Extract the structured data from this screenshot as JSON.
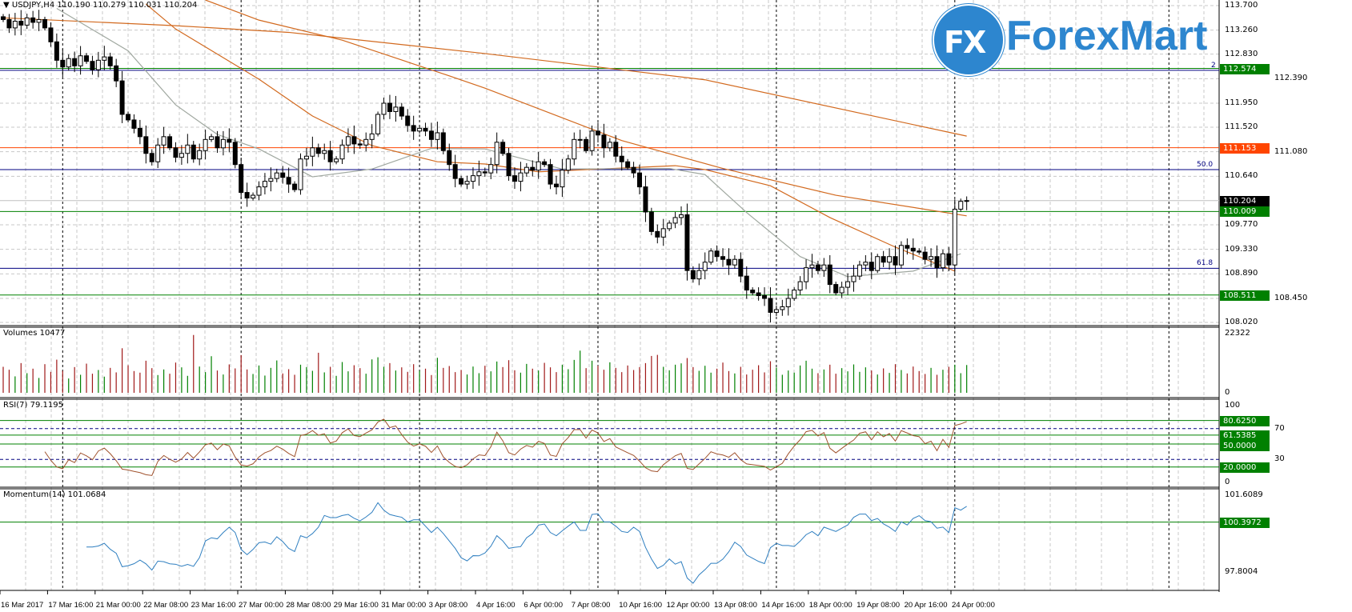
{
  "header": {
    "symbol": "USDJPY,H4",
    "open": "110.190",
    "high": "110.279",
    "low": "110.031",
    "close": "110.204"
  },
  "logo": {
    "text": "ForexMart",
    "badge": "FX"
  },
  "panes": {
    "volumes_label": "Volumes 10477",
    "rsi_label": "RSI(7) 79.1195",
    "momentum_label": "Momentum(14) 101.0684"
  },
  "colors": {
    "up_volume": "#008000",
    "down_volume": "#a01818",
    "ma": "#d2691e",
    "ma_fast": "#a0a8a0",
    "rsi": "#a0522d",
    "momentum": "#2f7fc0",
    "level_green": "#008000",
    "level_orange": "#ff4500",
    "fib": "#000080",
    "brand": "#2d86cf"
  },
  "chart_data": {
    "type": "candlestick",
    "title": "USDJPY,H4",
    "price_axis": {
      "min": 108.02,
      "max": 113.7,
      "ticks": [
        "113.700",
        "113.260",
        "112.830",
        "112.390",
        "111.950",
        "111.520",
        "111.080",
        "110.640",
        "109.770",
        "109.330",
        "108.890",
        "108.450",
        "108.020"
      ]
    },
    "time_labels": [
      "16 Mar 2017",
      "17 Mar 16:00",
      "21 Mar 00:00",
      "22 Mar 08:00",
      "23 Mar 16:00",
      "27 Mar 00:00",
      "28 Mar 08:00",
      "29 Mar 16:00",
      "31 Mar 00:00",
      "3 Apr 08:00",
      "4 Apr 16:00",
      "6 Apr 00:00",
      "7 Apr 08:00",
      "10 Apr 16:00",
      "12 Apr 00:00",
      "13 Apr 08:00",
      "14 Apr 16:00",
      "18 Apr 00:00",
      "19 Apr 08:00",
      "20 Apr 16:00",
      "24 Apr 00:00"
    ],
    "bars_per_label": 8,
    "week_separator_bars": [
      10,
      40,
      70,
      100,
      130,
      160,
      196
    ],
    "closes": [
      113.45,
      113.3,
      113.42,
      113.35,
      113.48,
      113.4,
      113.45,
      113.3,
      113.05,
      112.72,
      112.6,
      112.75,
      112.62,
      112.8,
      112.7,
      112.55,
      112.72,
      112.78,
      112.62,
      112.35,
      111.75,
      111.65,
      111.5,
      111.35,
      111.05,
      110.9,
      111.2,
      111.35,
      111.15,
      110.98,
      111.05,
      111.2,
      110.95,
      111.1,
      111.3,
      111.35,
      111.15,
      111.3,
      111.25,
      110.85,
      110.35,
      110.25,
      110.3,
      110.45,
      110.55,
      110.6,
      110.7,
      110.62,
      110.5,
      110.4,
      110.95,
      111.0,
      111.15,
      111.05,
      111.1,
      110.9,
      110.95,
      111.2,
      111.35,
      111.22,
      111.2,
      111.3,
      111.4,
      111.75,
      111.95,
      111.8,
      111.88,
      111.72,
      111.55,
      111.45,
      111.5,
      111.45,
      111.3,
      111.42,
      111.1,
      110.85,
      110.6,
      110.5,
      110.55,
      110.65,
      110.72,
      110.7,
      110.85,
      111.25,
      111.05,
      110.65,
      110.55,
      110.7,
      110.8,
      110.75,
      110.9,
      110.85,
      110.5,
      110.45,
      110.75,
      110.95,
      111.3,
      111.3,
      111.1,
      111.45,
      111.38,
      111.15,
      111.25,
      111.0,
      110.9,
      110.8,
      110.7,
      110.45,
      110.0,
      109.65,
      109.55,
      109.7,
      109.8,
      109.9,
      109.95,
      108.95,
      108.8,
      108.95,
      109.1,
      109.3,
      109.2,
      109.15,
      109.05,
      109.15,
      108.85,
      108.6,
      108.55,
      108.5,
      108.45,
      108.2,
      108.25,
      108.3,
      108.45,
      108.6,
      108.75,
      109.0,
      109.05,
      108.95,
      109.05,
      108.7,
      108.55,
      108.65,
      108.75,
      108.85,
      109.05,
      109.1,
      108.95,
      109.2,
      109.1,
      109.2,
      109.05,
      109.4,
      109.35,
      109.3,
      109.28,
      109.15,
      109.2,
      109.0,
      109.25,
      109.05,
      110.05,
      110.19,
      110.204
    ],
    "last_bar": {
      "open": 110.19,
      "high": 110.279,
      "low": 110.031,
      "close": 110.204
    },
    "moving_averages": [
      {
        "name": "ma-slow",
        "color": "#d2691e",
        "points": [
          [
            0,
            113.48
          ],
          [
            29,
            113.34
          ],
          [
            48,
            113.22
          ],
          [
            81,
            112.84
          ],
          [
            118,
            112.37
          ],
          [
            162,
            111.36
          ]
        ]
      },
      {
        "name": "ma-mid",
        "color": "#d2691e",
        "points": [
          [
            34,
            113.8
          ],
          [
            43,
            113.44
          ],
          [
            57,
            113.08
          ],
          [
            75,
            112.44
          ],
          [
            81,
            112.22
          ],
          [
            104,
            111.28
          ],
          [
            121,
            110.78
          ],
          [
            140,
            110.3
          ],
          [
            162,
            109.93
          ]
        ]
      },
      {
        "name": "ma-fast-orange",
        "color": "#d2691e",
        "points": [
          [
            24,
            113.73
          ],
          [
            29,
            113.28
          ],
          [
            43,
            112.38
          ],
          [
            52,
            111.72
          ],
          [
            62,
            111.19
          ],
          [
            73,
            110.9
          ],
          [
            81,
            110.86
          ],
          [
            90,
            110.72
          ],
          [
            113,
            110.83
          ],
          [
            118,
            110.76
          ],
          [
            129,
            110.47
          ],
          [
            139,
            109.9
          ],
          [
            150,
            109.37
          ],
          [
            160,
            108.94
          ]
        ]
      },
      {
        "name": "ma-gray",
        "color": "#a0a8a0",
        "points": [
          [
            9,
            113.65
          ],
          [
            21,
            112.89
          ],
          [
            29,
            111.92
          ],
          [
            36,
            111.39
          ],
          [
            43,
            111.13
          ],
          [
            52,
            110.63
          ],
          [
            62,
            110.77
          ],
          [
            72,
            111.14
          ],
          [
            81,
            111.13
          ],
          [
            94,
            110.77
          ],
          [
            112,
            110.78
          ],
          [
            118,
            110.67
          ],
          [
            125,
            109.99
          ],
          [
            134,
            109.2
          ],
          [
            142,
            108.84
          ],
          [
            153,
            108.94
          ],
          [
            161,
            109.25
          ]
        ]
      }
    ],
    "levels": [
      {
        "value": 112.574,
        "label": "112.574",
        "color": "#008000",
        "kind": "box"
      },
      {
        "value": 111.153,
        "label": "111.153",
        "color": "#ff4500",
        "kind": "box"
      },
      {
        "value": 110.204,
        "label": "110.204",
        "color": "#000000",
        "kind": "current"
      },
      {
        "value": 110.009,
        "label": "110.009",
        "color": "#008000",
        "kind": "box"
      },
      {
        "value": 108.511,
        "label": "108.511",
        "color": "#008000",
        "kind": "box"
      }
    ],
    "fib_levels": [
      {
        "value": 112.54,
        "label": "2"
      },
      {
        "value": 110.76,
        "label": "50.0"
      },
      {
        "value": 108.99,
        "label": "61.8"
      }
    ],
    "volume": {
      "min": 0,
      "max": 22322,
      "max_label": "22322",
      "min_label": "0",
      "current": 10477,
      "values": [
        9800,
        8700,
        6200,
        11200,
        7400,
        9100,
        5600,
        10800,
        7900,
        12500,
        8300,
        5400,
        9700,
        6800,
        11000,
        7200,
        8600,
        6100,
        9400,
        7700,
        16800,
        10400,
        8200,
        7600,
        12100,
        9300,
        6700,
        8800,
        7200,
        11400,
        9600,
        6400,
        21800,
        9900,
        7800,
        13800,
        8400,
        6900,
        10700,
        9200,
        14200,
        8800,
        7100,
        10300,
        6500,
        9400,
        12200,
        7300,
        8900,
        6800,
        10600,
        9700,
        8300,
        15100,
        7700,
        9800,
        6400,
        11600,
        8100,
        10400,
        9300,
        7200,
        12600,
        13400,
        9800,
        11200,
        8400,
        9600,
        7900,
        10800,
        8300,
        9100,
        6700,
        13200,
        9400,
        10100,
        7800,
        8600,
        6900,
        9900,
        7400,
        10200,
        8100,
        11800,
        9700,
        12300,
        8500,
        7600,
        10900,
        9100,
        8400,
        11300,
        9600,
        7800,
        10600,
        8900,
        12400,
        15900,
        9300,
        12100,
        10200,
        8700,
        11500,
        9400,
        7800,
        10300,
        8600,
        9700,
        11200,
        13900,
        14300,
        9800,
        8500,
        10600,
        11100,
        13100,
        9700,
        8300,
        10200,
        7600,
        9100,
        11400,
        8200,
        7300,
        9800,
        6900,
        8700,
        10400,
        7700,
        11900,
        9500,
        6800,
        8400,
        7600,
        10300,
        12100,
        9100,
        7400,
        8800,
        10600,
        7200,
        9300,
        8100,
        10700,
        7900,
        9600,
        8400,
        6900,
        9200,
        7500,
        10800,
        8600,
        7300,
        9900,
        8200,
        7100,
        9400,
        6800,
        8700,
        9800,
        10600,
        7400,
        10477
      ]
    },
    "rsi": {
      "period": 7,
      "current": 79.1195,
      "range": [
        0,
        100
      ],
      "ticks": [
        {
          "value": 100,
          "label": "100"
        },
        {
          "value": 70,
          "label": "70"
        },
        {
          "value": 30,
          "label": "30"
        },
        {
          "value": 0,
          "label": "0"
        }
      ],
      "dashed_levels": [
        70,
        30
      ],
      "levels": [
        {
          "value": 80.625,
          "label": "80.6250"
        },
        {
          "value": 61.5385,
          "label": "61.5385"
        },
        {
          "value": 50,
          "label": "50.0000"
        },
        {
          "value": 20,
          "label": "20.0000"
        }
      ]
    },
    "momentum": {
      "period": 14,
      "current": 101.0684,
      "range": [
        97.8004,
        101.6089
      ],
      "max_label": "101.6089",
      "min_label": "97.8004",
      "levels": [
        {
          "value": 100.3972,
          "label": "100.3972"
        }
      ]
    }
  }
}
